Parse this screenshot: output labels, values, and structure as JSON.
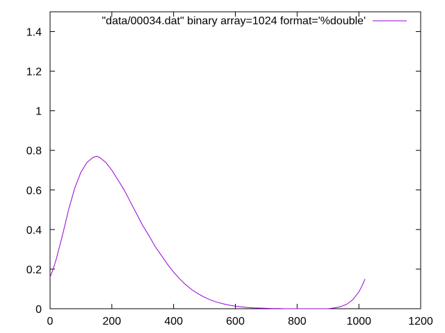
{
  "chart_data": {
    "type": "line",
    "legend": {
      "label": "\"data/00034.dat\" binary array=1024 format='%double'",
      "position": "top-right"
    },
    "xlim": [
      0,
      1200
    ],
    "ylim": [
      0,
      1.5
    ],
    "x_ticks": [
      "0",
      "200",
      "400",
      "600",
      "800",
      "1000",
      "1200"
    ],
    "y_ticks": [
      "0",
      "0.2",
      "0.4",
      "0.6",
      "0.8",
      "1",
      "1.2",
      "1.4"
    ],
    "grid": false,
    "colors": {
      "series": "#9400d3",
      "axes": "#000000",
      "background": "#ffffff"
    },
    "series": [
      {
        "x": [
          0,
          10,
          20,
          40,
          60,
          80,
          100,
          120,
          140,
          150,
          160,
          180,
          200,
          220,
          240,
          260,
          280,
          300,
          320,
          340,
          360,
          380,
          400,
          420,
          440,
          460,
          480,
          500,
          520,
          540,
          560,
          580,
          600,
          620,
          640,
          660,
          680,
          700,
          720,
          740,
          760,
          780,
          800,
          820,
          840,
          860,
          880,
          900,
          920,
          940,
          960,
          980,
          1000,
          1010,
          1020
        ],
        "y": [
          0.16,
          0.2,
          0.25,
          0.37,
          0.5,
          0.61,
          0.69,
          0.74,
          0.765,
          0.77,
          0.765,
          0.74,
          0.7,
          0.65,
          0.6,
          0.54,
          0.48,
          0.42,
          0.37,
          0.315,
          0.27,
          0.225,
          0.185,
          0.15,
          0.12,
          0.095,
          0.075,
          0.058,
          0.044,
          0.033,
          0.025,
          0.018,
          0.013,
          0.009,
          0.006,
          0.004,
          0.003,
          0.002,
          0.001,
          0.001,
          0.0,
          0.0,
          0.0,
          0.0,
          0.0,
          0.0,
          0.0,
          0.0,
          0.004,
          0.01,
          0.022,
          0.045,
          0.085,
          0.115,
          0.15
        ]
      }
    ]
  }
}
